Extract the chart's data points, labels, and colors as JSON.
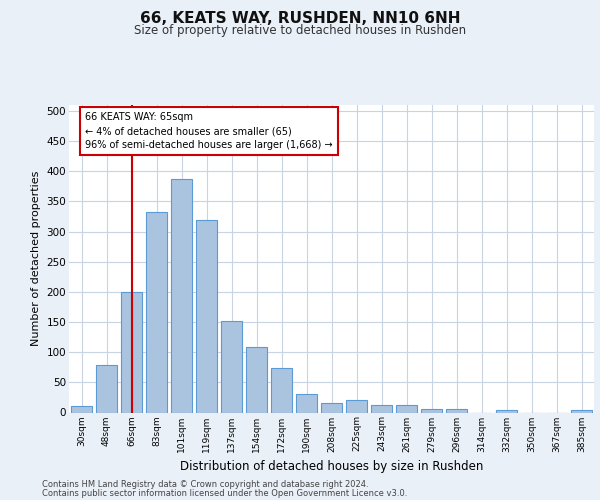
{
  "title": "66, KEATS WAY, RUSHDEN, NN10 6NH",
  "subtitle": "Size of property relative to detached houses in Rushden",
  "xlabel": "Distribution of detached houses by size in Rushden",
  "ylabel": "Number of detached properties",
  "categories": [
    "30sqm",
    "48sqm",
    "66sqm",
    "83sqm",
    "101sqm",
    "119sqm",
    "137sqm",
    "154sqm",
    "172sqm",
    "190sqm",
    "208sqm",
    "225sqm",
    "243sqm",
    "261sqm",
    "279sqm",
    "296sqm",
    "314sqm",
    "332sqm",
    "350sqm",
    "367sqm",
    "385sqm"
  ],
  "values": [
    10,
    78,
    200,
    333,
    388,
    319,
    151,
    108,
    73,
    30,
    16,
    21,
    12,
    13,
    6,
    5,
    0,
    4,
    0,
    0,
    4
  ],
  "bar_color": "#aac4e0",
  "bar_edge_color": "#5b9bd5",
  "vline_x_index": 2,
  "annotation_text": "66 KEATS WAY: 65sqm\n← 4% of detached houses are smaller (65)\n96% of semi-detached houses are larger (1,668) →",
  "annotation_box_color": "#ffffff",
  "annotation_box_edge": "#cc0000",
  "vline_color": "#cc0000",
  "ylim": [
    0,
    510
  ],
  "yticks": [
    0,
    50,
    100,
    150,
    200,
    250,
    300,
    350,
    400,
    450,
    500
  ],
  "footer1": "Contains HM Land Registry data © Crown copyright and database right 2024.",
  "footer2": "Contains public sector information licensed under the Open Government Licence v3.0.",
  "bg_color": "#eaf0f8",
  "plot_bg_color": "#ffffff",
  "grid_color": "#c8d4e4"
}
